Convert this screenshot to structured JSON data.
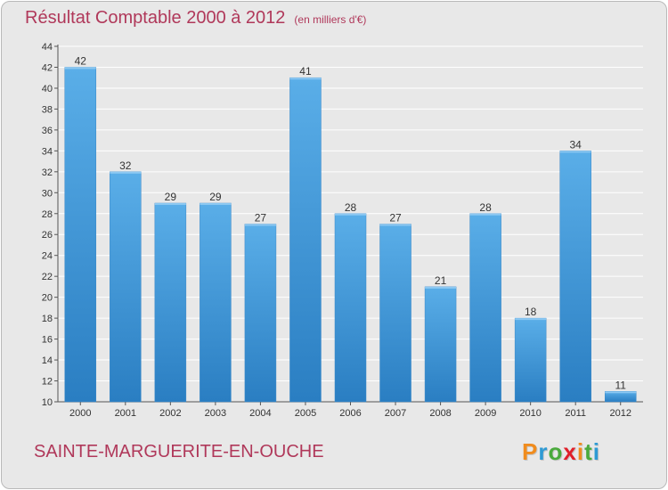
{
  "title": "Résultat Comptable 2000 à 2012",
  "subtitle": "(en milliers d'€)",
  "commune": "SAINTE-MARGUERITE-EN-OUCHE",
  "logo": {
    "text": "Proxiti",
    "letters": [
      {
        "ch": "P",
        "color": "#f08c1e"
      },
      {
        "ch": "r",
        "color": "#2e9ad4"
      },
      {
        "ch": "o",
        "color": "#4aaa3c"
      },
      {
        "ch": "x",
        "color": "#e0202a"
      },
      {
        "ch": "i",
        "color": "#f08c1e"
      },
      {
        "ch": "t",
        "color": "#4aaa3c"
      },
      {
        "ch": "i",
        "color": "#2e9ad4"
      }
    ]
  },
  "colors": {
    "bar_top": "#5aaee8",
    "bar_bottom": "#2a7ec2",
    "accent_text": "#b0385a",
    "plot_bg": "#e8e8e8",
    "grid": "#ffffff"
  },
  "chart_data": {
    "type": "bar",
    "categories": [
      "2000",
      "2001",
      "2002",
      "2003",
      "2004",
      "2005",
      "2006",
      "2007",
      "2008",
      "2009",
      "2010",
      "2011",
      "2012"
    ],
    "values": [
      42,
      32,
      29,
      29,
      27,
      41,
      28,
      27,
      21,
      28,
      18,
      34,
      11
    ],
    "data_labels": [
      "42",
      "32",
      "29",
      "29",
      "27",
      "41",
      "28",
      "27",
      "21",
      "28",
      "18",
      "34",
      "11"
    ],
    "ylim": [
      10,
      44
    ],
    "yticks": [
      10,
      12,
      14,
      16,
      18,
      20,
      22,
      24,
      26,
      28,
      30,
      32,
      34,
      36,
      38,
      40,
      42,
      44
    ],
    "grid": true,
    "xlabel": "",
    "ylabel": ""
  }
}
